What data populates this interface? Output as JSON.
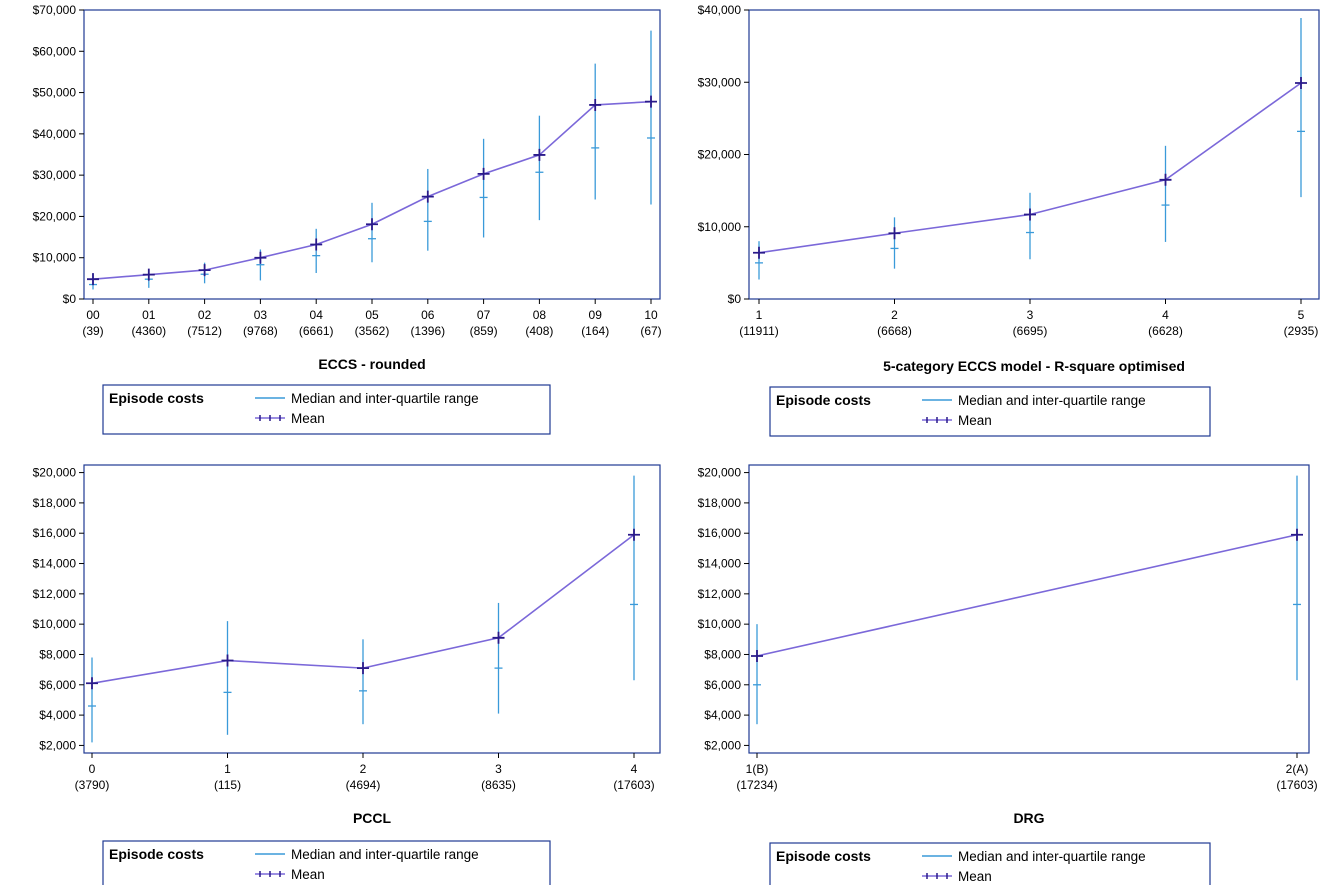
{
  "colors": {
    "median": "#3a9ad9",
    "mean": "#2a1a8a",
    "mean_line": "#7b68d9",
    "frame": "#1f3a93"
  },
  "chart_data": [
    {
      "type": "line",
      "xlabel": "ECCS - rounded",
      "categories": [
        "00",
        "01",
        "02",
        "03",
        "04",
        "05",
        "06",
        "07",
        "08",
        "09",
        "10"
      ],
      "counts": [
        "(39)",
        "(4360)",
        "(7512)",
        "(9768)",
        "(6661)",
        "(3562)",
        "(1396)",
        "(859)",
        "(408)",
        "(164)",
        "(67)"
      ],
      "ylim": [
        0,
        70000
      ],
      "yticks": [
        0,
        10000,
        20000,
        30000,
        40000,
        50000,
        60000,
        70000
      ],
      "ytick_labels": [
        "$0",
        "$10,000",
        "$20,000",
        "$30,000",
        "$40,000",
        "$50,000",
        "$60,000",
        "$70,000"
      ],
      "series": [
        {
          "name": "Mean",
          "values": [
            4800,
            5900,
            7000,
            10000,
            13200,
            18100,
            24800,
            30300,
            34900,
            47000,
            47800
          ]
        },
        {
          "name": "Median and inter-quartile range",
          "median": [
            3500,
            4800,
            6000,
            8300,
            10500,
            14600,
            18800,
            24600,
            30700,
            36600,
            39000
          ],
          "q1": [
            2300,
            2700,
            3800,
            4500,
            6300,
            8900,
            11700,
            14900,
            19100,
            24100,
            22900
          ],
          "q3": [
            6200,
            7100,
            8800,
            12000,
            17000,
            23300,
            31500,
            38800,
            44400,
            57000,
            65000
          ]
        }
      ],
      "legend": {
        "title": "Episode costs",
        "median_label": "Median and inter-quartile range",
        "mean_label": "Mean"
      }
    },
    {
      "type": "line",
      "xlabel": "5-category ECCS model - R-square optimised",
      "categories": [
        "1",
        "2",
        "3",
        "4",
        "5"
      ],
      "counts": [
        "(11911)",
        "(6668)",
        "(6695)",
        "(6628)",
        "(2935)"
      ],
      "ylim": [
        0,
        40000
      ],
      "yticks": [
        0,
        10000,
        20000,
        30000,
        40000
      ],
      "ytick_labels": [
        "$0",
        "$10,000",
        "$20,000",
        "$30,000",
        "$40,000"
      ],
      "series": [
        {
          "name": "Mean",
          "values": [
            6400,
            9100,
            11700,
            16500,
            29900
          ]
        },
        {
          "name": "Median and inter-quartile range",
          "median": [
            5000,
            7000,
            9200,
            13000,
            23200
          ],
          "q1": [
            2700,
            4200,
            5500,
            7900,
            14100
          ],
          "q3": [
            8000,
            11300,
            14700,
            21200,
            38900
          ]
        }
      ],
      "legend": {
        "title": "Episode costs",
        "median_label": "Median and inter-quartile range",
        "mean_label": "Mean"
      }
    },
    {
      "type": "line",
      "xlabel": "PCCL",
      "categories": [
        "0",
        "1",
        "2",
        "3",
        "4"
      ],
      "counts": [
        "(3790)",
        "(115)",
        "(4694)",
        "(8635)",
        "(17603)"
      ],
      "ylim": [
        1500,
        20500
      ],
      "yticks": [
        2000,
        4000,
        6000,
        8000,
        10000,
        12000,
        14000,
        16000,
        18000,
        20000
      ],
      "ytick_labels": [
        "$2,000",
        "$4,000",
        "$6,000",
        "$8,000",
        "$10,000",
        "$12,000",
        "$14,000",
        "$16,000",
        "$18,000",
        "$20,000"
      ],
      "series": [
        {
          "name": "Mean",
          "values": [
            6100,
            7600,
            7100,
            9100,
            15900
          ]
        },
        {
          "name": "Median and inter-quartile range",
          "median": [
            4600,
            5500,
            5600,
            7100,
            11300
          ],
          "q1": [
            2200,
            2700,
            3400,
            4100,
            6300
          ],
          "q3": [
            7800,
            10200,
            9000,
            11400,
            19800
          ]
        }
      ],
      "legend": {
        "title": "Episode costs",
        "median_label": "Median and inter-quartile range",
        "mean_label": "Mean"
      }
    },
    {
      "type": "line",
      "xlabel": "DRG",
      "categories": [
        "1(B)",
        "2(A)"
      ],
      "counts": [
        "(17234)",
        "(17603)"
      ],
      "ylim": [
        1500,
        20500
      ],
      "yticks": [
        2000,
        4000,
        6000,
        8000,
        10000,
        12000,
        14000,
        16000,
        18000,
        20000
      ],
      "ytick_labels": [
        "$2,000",
        "$4,000",
        "$6,000",
        "$8,000",
        "$10,000",
        "$12,000",
        "$14,000",
        "$16,000",
        "$18,000",
        "$20,000"
      ],
      "series": [
        {
          "name": "Mean",
          "values": [
            7900,
            15900
          ]
        },
        {
          "name": "Median and inter-quartile range",
          "median": [
            6000,
            11300
          ],
          "q1": [
            3400,
            6300
          ],
          "q3": [
            10000,
            19800
          ]
        }
      ],
      "legend": {
        "title": "Episode costs",
        "median_label": "Median and inter-quartile range",
        "mean_label": "Mean"
      }
    }
  ]
}
